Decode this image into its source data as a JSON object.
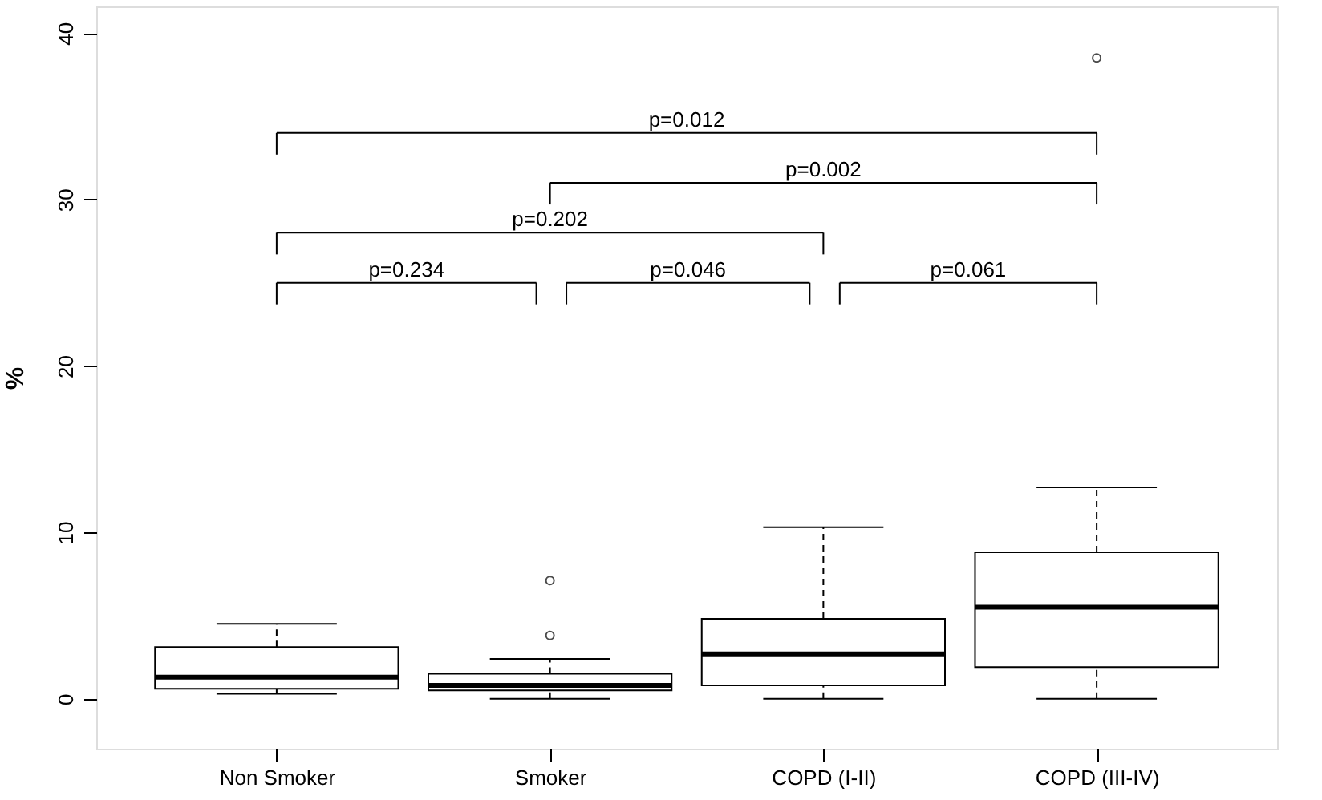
{
  "chart_data": {
    "type": "box",
    "ylabel": "%",
    "categories": [
      "Non Smoker",
      "Smoker",
      "COPD (I-II)",
      "COPD (III-IV)"
    ],
    "boxes": [
      {
        "low": 0.3,
        "q1": 0.6,
        "median": 1.3,
        "q3": 3.1,
        "high": 4.5
      },
      {
        "low": 0,
        "q1": 0.5,
        "median": 0.8,
        "q3": 1.5,
        "high": 2.4,
        "outliers": [
          3.8,
          7.1
        ]
      },
      {
        "low": 0,
        "q1": 0.8,
        "median": 2.7,
        "q3": 4.8,
        "high": 10.3
      },
      {
        "low": 0,
        "q1": 1.9,
        "median": 5.5,
        "q3": 8.8,
        "high": 12.7,
        "outliers": [
          38.5
        ]
      }
    ],
    "ylim": [
      -3,
      41.6
    ],
    "yticks": [
      0,
      10,
      20,
      30,
      40
    ],
    "grid": false,
    "annotations": [
      "p=0.012",
      "p=0.002",
      "p=0.202",
      "p=0.234",
      "p=0.046",
      "p=0.061"
    ]
  }
}
